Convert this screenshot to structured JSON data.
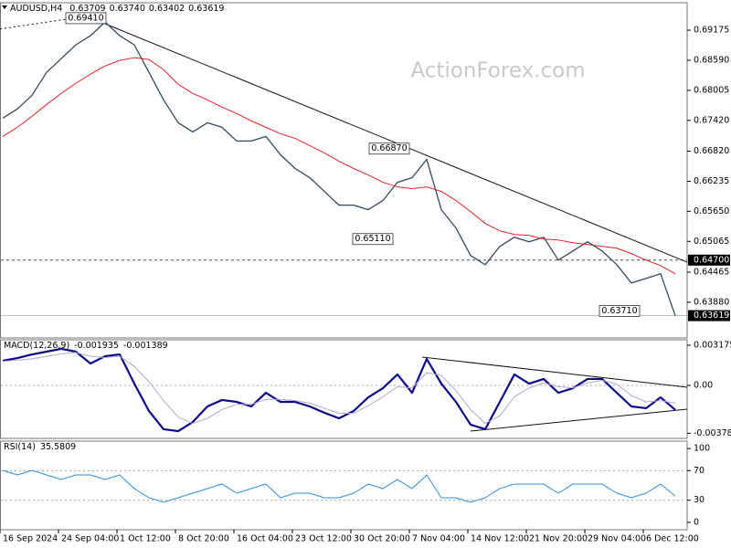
{
  "chart_data": [
    {
      "type": "line",
      "title": "AUDUSD,H4",
      "watermark": "ActionForex.com",
      "ohlc": [
        0.63709,
        {
          "value": 0.6374,
          "label": "0.63740"
        },
        0.63402,
        0.63619
      ],
      "ylim": [
        0.63185,
        0.6971
      ],
      "yticks": [
        0.69175,
        {
          "value": 0.6859,
          "label": "0.68590"
        },
        0.68005,
        {
          "value": 0.6742,
          "label": "0.67420"
        },
        {
          "value": 0.6682,
          "label": "0.66820"
        },
        0.66235,
        {
          "value": 0.6565,
          "label": "0.65650"
        },
        0.65065,
        0.64465,
        {
          "value": 0.6388,
          "label": "0.63880"
        }
      ],
      "series": [
        {
          "color": "#34495e",
          "width": 1.3,
          "values": [
            0.67463,
            0.67642,
            0.67909,
            0.68355,
            0.68622,
            0.6889,
            0.69068,
            0.69335,
            0.69068,
            0.6889,
            0.68355,
            0.6782,
            0.67374,
            0.67196,
            0.67374,
            0.67285,
            0.67018,
            0.67018,
            0.67107,
            0.6675,
            0.66483,
            0.66305,
            0.66037,
            0.6577,
            0.6577,
            0.65681,
            0.65859,
            0.66215,
            0.66305,
            0.66661,
            0.65681,
            0.65325,
            0.6479,
            0.64611,
            0.64967,
            0.65146,
            0.65057,
            0.65146,
            0.647,
            0.64878,
            0.65057,
            0.64878,
            0.64611,
            0.64254,
            0.64343,
            0.64433,
            0.63619
          ]
        },
        {
          "color": "#e3212b",
          "width": 1,
          "values": [
            0.67107,
            0.67285,
            0.67499,
            0.67731,
            0.67945,
            0.68141,
            0.68319,
            0.6848,
            0.68587,
            0.6864,
            0.68604,
            0.68408,
            0.68123,
            0.67945,
            0.6782,
            0.67677,
            0.67553,
            0.6741,
            0.67285,
            0.6716,
            0.67071,
            0.66929,
            0.66786,
            0.66625,
            0.66483,
            0.66358,
            0.66215,
            0.66126,
            0.66091,
            0.66126,
            0.66037,
            0.65859,
            0.65645,
            0.65413,
            0.6527,
            0.65199,
            0.65181,
            0.6511,
            0.65092,
            0.65038,
            0.65003,
            0.64967,
            0.64932,
            0.64825,
            0.647,
            0.64593,
            0.64432
          ]
        }
      ],
      "levels": [
        {
          "value": 0.647,
          "label": "0.64700",
          "style": "dashed"
        },
        {
          "value": 0.63619,
          "label": "0.63619",
          "style": "solid"
        }
      ],
      "trendlines": [
        {
          "values": [
            0.6941,
            0.6466
          ],
          "style": "solid"
        },
        {
          "values": [
            0.692,
            0.6946
          ],
          "style": "dashed"
        }
      ],
      "annotations": [
        {
          "value": 0.6941,
          "label": "0.69410"
        },
        {
          "value": 0.6687,
          "label": "0.66870"
        },
        {
          "value": 0.6511,
          "label": "0.65110"
        },
        {
          "value": 0.6371,
          "label": "0.63710"
        }
      ]
    },
    {
      "type": "line",
      "title": "MACD(12,26,9)",
      "ylim": [
        -0.004185,
        0.003608
      ],
      "yticks": [
        0.003175,
        {
          "value": 0,
          "label": "0.00"
        },
        -0.00378
      ],
      "grid_lines": [
        0
      ],
      "series": [
        {
          "color": "#0b0b8a",
          "width": 2.2,
          "values": [
            0.00195,
            0.00216,
            0.00245,
            0.00267,
            0.00289,
            0.00267,
            0.00173,
            0.00231,
            0.00245,
            0.00014,
            -0.00202,
            -0.00346,
            -0.00361,
            -0.00289,
            -0.00166,
            -0.00115,
            -0.0013,
            -0.00166,
            -0.00058,
            -0.0013,
            -0.0013,
            -0.00166,
            -0.00216,
            -0.0026,
            -0.00202,
            -0.00094,
            -0.00022,
            0.00087,
            -0.00058,
            0.00209,
            0.00014,
            -0.0013,
            -0.0031,
            -0.00346,
            -0.0013,
            0.00087,
            0.00014,
            0.00051,
            -0.00058,
            -0.00022,
            0.00051,
            0.00051,
            -0.00058,
            -0.00166,
            -0.0018,
            -0.00094,
            -0.001935
          ]
        },
        {
          "color": "#b7a6c9",
          "width": 1,
          "values": [
            0.0019,
            0.002,
            0.0021,
            0.0023,
            0.0025,
            0.0026,
            0.0023,
            0.0022,
            0.0023,
            0.0015,
            0.0003,
            -0.0012,
            -0.0025,
            -0.003,
            -0.0026,
            -0.0019,
            -0.0015,
            -0.0015,
            -0.0011,
            -0.0011,
            -0.0012,
            -0.0014,
            -0.0018,
            -0.0022,
            -0.0022,
            -0.0016,
            -0.0009,
            -0.0001,
            -0.0002,
            0.001,
            0.0008,
            -0.0004,
            -0.0019,
            -0.003,
            -0.0024,
            -0.0009,
            -0.0002,
            0.0002,
            -0.0001,
            -0.0002,
            0.0002,
            0.0004,
            0.0001,
            -0.0008,
            -0.0013,
            -0.0012,
            -0.001389
          ]
        }
      ],
      "trendlines": [
        {
          "values": [
            0.00224,
            -0.00014
          ],
          "style": "solid"
        },
        {
          "values": [
            -0.00361,
            -0.00188
          ],
          "style": "solid"
        }
      ]
    },
    {
      "type": "line",
      "title": "RSI(14)",
      "ylim": [
        -10,
        110
      ],
      "yticks": [
        100,
        70,
        30,
        0
      ],
      "grid_lines": [
        70,
        30
      ],
      "series": [
        {
          "color": "#2f8fd8",
          "width": 1,
          "values": [
            70.4,
            64.2,
            70.4,
            64.2,
            58,
            64.2,
            64.2,
            58,
            64.2,
            45.7,
            33.3,
            27.2,
            33.3,
            39.5,
            45.7,
            51.9,
            39.5,
            45.7,
            51.9,
            33.3,
            39.5,
            39.5,
            33.3,
            33.3,
            39.5,
            51.9,
            45.7,
            58,
            45.7,
            64.2,
            33.3,
            33.3,
            27.2,
            33.3,
            45.7,
            51.9,
            51.9,
            51.9,
            39.5,
            51.9,
            51.9,
            51.9,
            39.5,
            33.3,
            39.5,
            51.9,
            35.5809
          ]
        }
      ],
      "categories": [
        "16 Sep 2024",
        null,
        null,
        null,
        "24 Sep 04:00",
        null,
        null,
        null,
        "1 Oct 12:00",
        null,
        null,
        null,
        "8 Oct 20:00",
        null,
        null,
        null,
        "16 Oct 04:00",
        null,
        null,
        null,
        "23 Oct 12:00",
        null,
        null,
        null,
        "30 Oct 20:00",
        null,
        null,
        null,
        "7 Nov 04:00",
        null,
        null,
        null,
        "14 Nov 12:00",
        null,
        null,
        null,
        "21 Nov 20:00",
        null,
        null,
        null,
        "29 Nov 04:00",
        null,
        null,
        null,
        "6 Dec 12:00",
        null,
        null
      ]
    }
  ]
}
